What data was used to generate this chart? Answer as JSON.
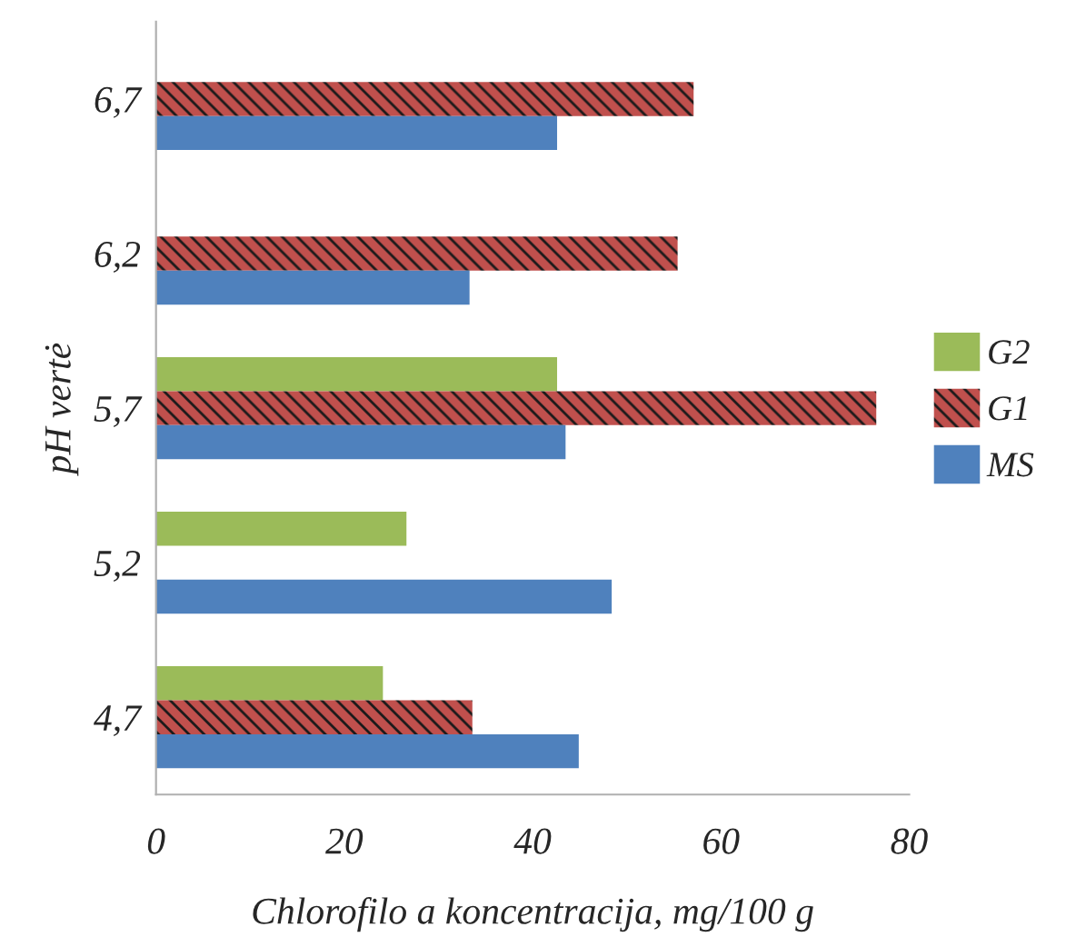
{
  "chart_data": {
    "type": "bar",
    "orientation": "horizontal",
    "xlabel": "Chlorofilo a koncentracija, mg/100 g",
    "ylabel": "pH vertė",
    "categories": [
      "6,7",
      "6,2",
      "5,7",
      "5,2",
      "4,7"
    ],
    "series": [
      {
        "name": "G2",
        "color": "#9bbb59",
        "values": [
          null,
          null,
          42.6,
          26.6,
          24.1
        ]
      },
      {
        "name": "G1",
        "color": "#c0504d",
        "values": [
          57.1,
          55.4,
          76.5,
          null,
          33.6
        ]
      },
      {
        "name": "MS",
        "color": "#4f81bd",
        "values": [
          42.6,
          33.3,
          43.5,
          48.4,
          44.9
        ]
      }
    ],
    "xlim": [
      0,
      80
    ],
    "xticks": [
      0,
      20,
      40,
      60,
      80
    ],
    "grid": false,
    "legend": "right"
  }
}
